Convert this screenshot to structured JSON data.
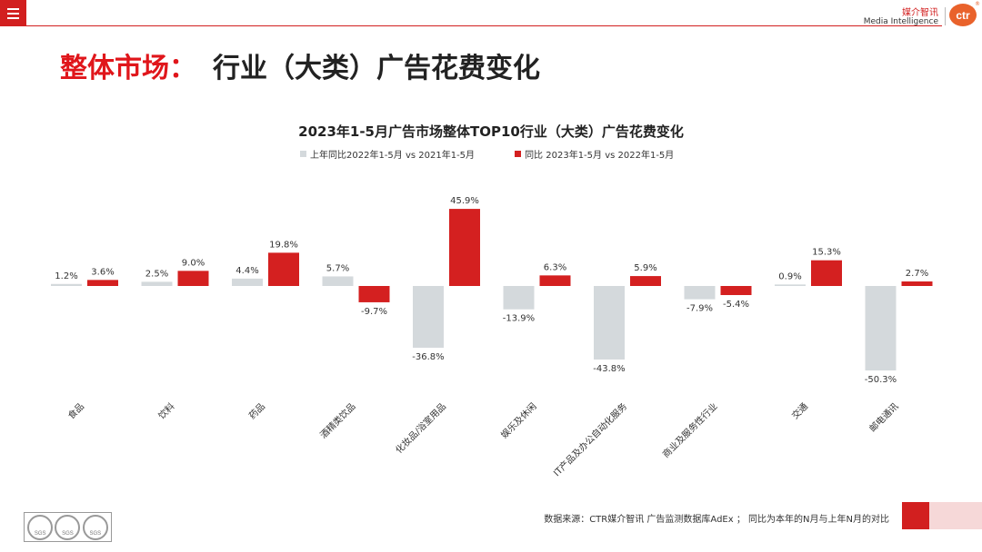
{
  "header": {
    "brand_cn": "媒介智讯",
    "brand_en": "Media Intelligence",
    "logo_text": "ctr",
    "logo_mark": "®"
  },
  "page": {
    "title_part1": "整体市场：",
    "title_part2": "行业（大类）广告花费变化"
  },
  "colors": {
    "series1": "#d4d9dc",
    "series2": "#d42020",
    "accent": "#d21f1f"
  },
  "chart_data": {
    "type": "bar",
    "title": "2023年1-5月广告市场整体TOP10行业（大类）广告花费变化",
    "categories": [
      "食品",
      "饮料",
      "药品",
      "酒精类饮品",
      "化妆品/浴室用品",
      "娱乐及休闲",
      "IT产品及办公自动化服务",
      "商业及服务性行业",
      "交通",
      "邮电通讯"
    ],
    "series": [
      {
        "name": "上年同比2022年1-5月  vs  2021年1-5月",
        "values": [
          1.2,
          2.5,
          4.4,
          5.7,
          -36.8,
          -13.9,
          -43.8,
          -7.9,
          0.9,
          -50.3
        ]
      },
      {
        "name": "同比 2023年1-5月  vs  2022年1-5月",
        "values": [
          3.6,
          9.0,
          19.8,
          -9.7,
          45.9,
          6.3,
          5.9,
          -5.4,
          15.3,
          2.7
        ]
      }
    ],
    "value_labels": [
      [
        "1.2%",
        "2.5%",
        "4.4%",
        "5.7%",
        "-36.8%",
        "-13.9%",
        "-43.8%",
        "-7.9%",
        "0.9%",
        "-50.3%"
      ],
      [
        "3.6%",
        "9.0%",
        "19.8%",
        "-9.7%",
        "45.9%",
        "6.3%",
        "5.9%",
        "-5.4%",
        "15.3%",
        "2.7%"
      ]
    ],
    "ylabel": "",
    "xlabel": "",
    "ylim": [
      -55,
      50
    ],
    "unit": "%",
    "legend": "top-center"
  },
  "footer": {
    "source": "数据来源：CTR媒介智讯 广告监测数据库AdEx ；  同比为本年的N月与上年N月的对比",
    "badges": [
      "SGS",
      "SGS",
      "SGS"
    ]
  }
}
